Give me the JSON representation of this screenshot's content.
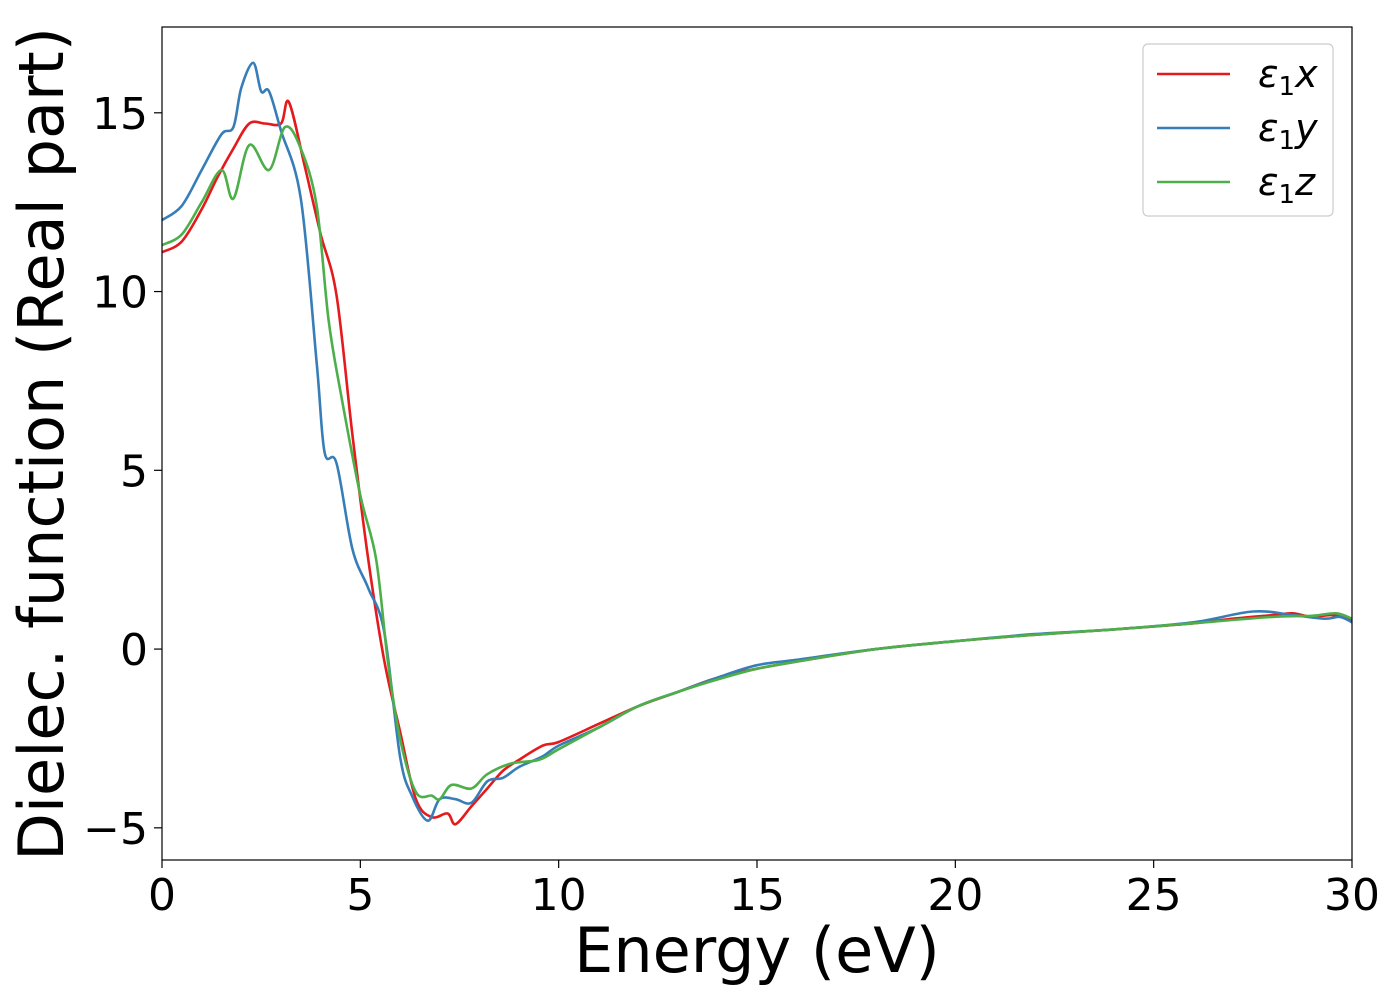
{
  "chart_data": {
    "type": "line",
    "xlabel": "Energy (eV)",
    "ylabel": "Dielec. function (Real part)",
    "xlim": [
      0,
      30
    ],
    "ylim": [
      -5.9,
      17.4
    ],
    "xticks": [
      0,
      5,
      10,
      15,
      20,
      25,
      30
    ],
    "yticks": [
      -5,
      0,
      5,
      10,
      15
    ],
    "xtick_labels": [
      "0",
      "5",
      "10",
      "15",
      "20",
      "25",
      "30"
    ],
    "ytick_labels": [
      "−5",
      "0",
      "5",
      "10",
      "15"
    ],
    "grid": false,
    "legend_position": "top-right",
    "series": [
      {
        "name": "ε1x",
        "legend_symbol": "ε",
        "legend_sub": "1",
        "legend_axis": "x",
        "color": "#e41a1c",
        "x": [
          0,
          0.5,
          1.0,
          1.4,
          1.8,
          2.2,
          2.6,
          3.0,
          3.2,
          3.6,
          4.0,
          4.4,
          4.8,
          5.2,
          5.6,
          6.0,
          6.4,
          6.8,
          7.2,
          7.4,
          7.8,
          8.2,
          8.6,
          9.0,
          9.6,
          10,
          11,
          12,
          13,
          14,
          15,
          16,
          18,
          20,
          22,
          24,
          26,
          27,
          28,
          28.5,
          29,
          29.5,
          30
        ],
        "y": [
          11.1,
          11.4,
          12.3,
          13.2,
          14.0,
          14.7,
          14.7,
          14.7,
          15.3,
          13.5,
          11.6,
          9.9,
          6.0,
          2.5,
          -0.3,
          -2.3,
          -4.2,
          -4.7,
          -4.6,
          -4.9,
          -4.4,
          -3.9,
          -3.4,
          -3.1,
          -2.7,
          -2.6,
          -2.1,
          -1.6,
          -1.2,
          -0.8,
          -0.55,
          -0.35,
          0.0,
          0.22,
          0.4,
          0.55,
          0.72,
          0.85,
          0.95,
          1.0,
          0.9,
          0.95,
          0.8
        ]
      },
      {
        "name": "ε1y",
        "legend_symbol": "ε",
        "legend_sub": "1",
        "legend_axis": "y",
        "color": "#377eb8",
        "x": [
          0,
          0.5,
          1.0,
          1.5,
          1.8,
          2.0,
          2.3,
          2.5,
          2.7,
          3.0,
          3.5,
          3.9,
          4.1,
          4.4,
          4.8,
          5.2,
          5.6,
          6.0,
          6.3,
          6.7,
          7.0,
          7.4,
          7.8,
          8.2,
          8.6,
          9.0,
          9.6,
          10,
          11,
          12,
          13,
          14,
          15,
          16,
          18,
          20,
          22,
          24,
          26,
          27.5,
          28.5,
          29.3,
          29.7,
          30
        ],
        "y": [
          12.0,
          12.4,
          13.4,
          14.4,
          14.6,
          15.7,
          16.4,
          15.6,
          15.6,
          14.5,
          12.6,
          8.0,
          5.5,
          5.2,
          2.8,
          1.7,
          0.5,
          -3.0,
          -4.1,
          -4.8,
          -4.2,
          -4.2,
          -4.3,
          -3.7,
          -3.6,
          -3.3,
          -3.0,
          -2.7,
          -2.2,
          -1.6,
          -1.2,
          -0.8,
          -0.45,
          -0.3,
          0.0,
          0.22,
          0.42,
          0.55,
          0.75,
          1.05,
          0.95,
          0.85,
          0.9,
          0.75
        ]
      },
      {
        "name": "ε1z",
        "legend_symbol": "ε",
        "legend_sub": "1",
        "legend_axis": "z",
        "color": "#4daf4a",
        "x": [
          0,
          0.5,
          1.0,
          1.5,
          1.8,
          2.2,
          2.7,
          3.1,
          3.5,
          3.9,
          4.2,
          4.5,
          5.0,
          5.4,
          5.7,
          6.0,
          6.4,
          6.8,
          7.0,
          7.3,
          7.8,
          8.2,
          8.8,
          9.5,
          10,
          11,
          12,
          13,
          14,
          15,
          16,
          18,
          20,
          22,
          24,
          26,
          28,
          29,
          29.6,
          30
        ],
        "y": [
          11.3,
          11.6,
          12.5,
          13.4,
          12.6,
          14.1,
          13.4,
          14.6,
          14.0,
          12.4,
          9.2,
          7.2,
          4.3,
          2.5,
          -0.4,
          -2.5,
          -4.0,
          -4.1,
          -4.2,
          -3.8,
          -3.9,
          -3.5,
          -3.2,
          -3.1,
          -2.8,
          -2.2,
          -1.6,
          -1.2,
          -0.85,
          -0.55,
          -0.35,
          0.0,
          0.22,
          0.4,
          0.55,
          0.72,
          0.9,
          0.93,
          1.0,
          0.85
        ]
      }
    ]
  }
}
